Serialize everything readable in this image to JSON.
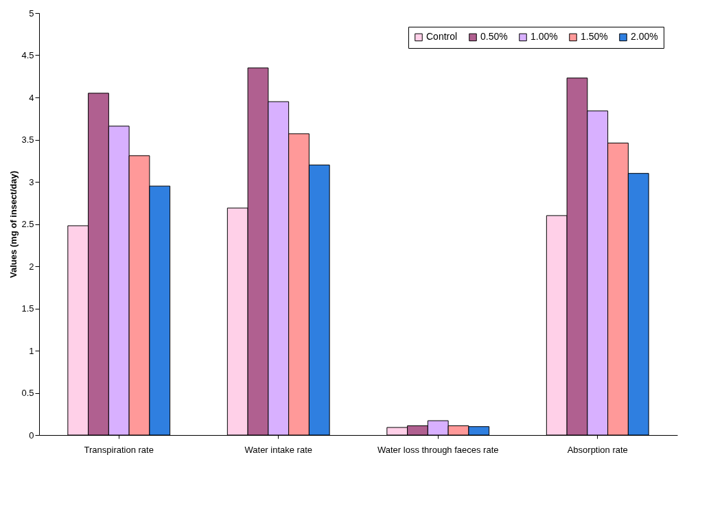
{
  "chart_data": {
    "type": "bar",
    "ylabel": "Values (mg of insect/day)",
    "categories": [
      "Transpiration rate",
      "Water intake rate",
      "Water loss through faeces rate",
      "Absorption rate"
    ],
    "series": [
      {
        "name": "Control",
        "color": "#ffd0e8",
        "values": [
          2.48,
          2.69,
          0.09,
          2.6
        ]
      },
      {
        "name": "0.50%",
        "color": "#b06090",
        "values": [
          4.05,
          4.35,
          0.11,
          4.23
        ]
      },
      {
        "name": "1.00%",
        "color": "#d8b0ff",
        "values": [
          3.66,
          3.95,
          0.17,
          3.84
        ]
      },
      {
        "name": "1.50%",
        "color": "#ff9999",
        "values": [
          3.31,
          3.57,
          0.11,
          3.46
        ]
      },
      {
        "name": "2.00%",
        "color": "#2f7fe0",
        "values": [
          2.95,
          3.2,
          0.1,
          3.1
        ]
      }
    ],
    "ylim": [
      0,
      5
    ],
    "yticks": [
      0,
      0.5,
      1,
      1.5,
      2,
      2.5,
      3,
      3.5,
      4,
      4.5,
      5
    ],
    "grid": false,
    "legend": "top right"
  }
}
